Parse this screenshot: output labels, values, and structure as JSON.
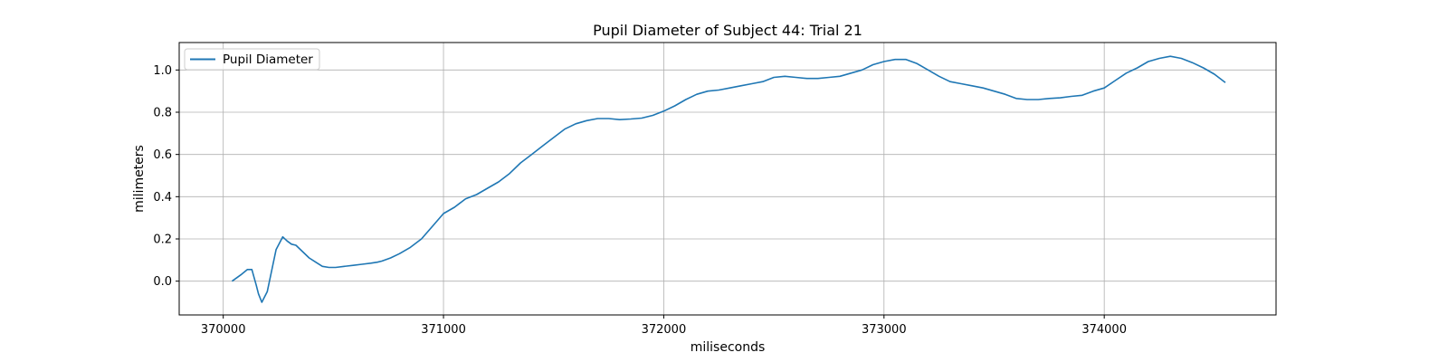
{
  "chart_data": {
    "type": "line",
    "title": "Pupil Diameter of Subject 44: Trial 21",
    "xlabel": "miliseconds",
    "ylabel": "milimeters",
    "xlim": [
      369800,
      374780
    ],
    "ylim": [
      -0.16,
      1.13
    ],
    "xticks": [
      370000,
      371000,
      372000,
      373000,
      374000
    ],
    "yticks": [
      0.0,
      0.2,
      0.4,
      0.6,
      0.8,
      1.0
    ],
    "xtick_labels": [
      "370000",
      "371000",
      "372000",
      "373000",
      "374000"
    ],
    "ytick_labels": [
      "0.0",
      "0.2",
      "0.4",
      "0.6",
      "0.8",
      "1.0"
    ],
    "grid": true,
    "legend_position": "top-left",
    "series": [
      {
        "name": "Pupil Diameter",
        "color": "#1f77b4",
        "x": [
          370040,
          370080,
          370110,
          370130,
          370150,
          370160,
          370175,
          370200,
          370220,
          370240,
          370270,
          370290,
          370310,
          370330,
          370360,
          370390,
          370420,
          370450,
          370480,
          370510,
          370550,
          370590,
          370630,
          370670,
          370700,
          370720,
          370760,
          370800,
          370850,
          370900,
          370950,
          371000,
          371050,
          371100,
          371150,
          371200,
          371250,
          371300,
          371350,
          371400,
          371450,
          371500,
          371550,
          371600,
          371650,
          371700,
          371750,
          371800,
          371850,
          371900,
          371950,
          372000,
          372050,
          372100,
          372150,
          372200,
          372250,
          372300,
          372350,
          372400,
          372450,
          372500,
          372550,
          372600,
          372650,
          372700,
          372750,
          372800,
          372850,
          372900,
          372950,
          373000,
          373050,
          373100,
          373150,
          373200,
          373250,
          373300,
          373350,
          373400,
          373450,
          373500,
          373550,
          373600,
          373650,
          373700,
          373750,
          373800,
          373850,
          373900,
          373950,
          374000,
          374050,
          374100,
          374150,
          374200,
          374250,
          374300,
          374350,
          374400,
          374450,
          374500,
          374550
        ],
        "y": [
          0.0,
          0.03,
          0.055,
          0.055,
          -0.02,
          -0.06,
          -0.1,
          -0.05,
          0.05,
          0.15,
          0.21,
          0.19,
          0.175,
          0.17,
          0.14,
          0.11,
          0.09,
          0.07,
          0.065,
          0.065,
          0.07,
          0.075,
          0.08,
          0.085,
          0.09,
          0.095,
          0.11,
          0.13,
          0.16,
          0.2,
          0.26,
          0.32,
          0.35,
          0.39,
          0.41,
          0.44,
          0.47,
          0.51,
          0.56,
          0.6,
          0.64,
          0.68,
          0.72,
          0.745,
          0.76,
          0.77,
          0.77,
          0.765,
          0.768,
          0.772,
          0.785,
          0.805,
          0.83,
          0.86,
          0.885,
          0.9,
          0.905,
          0.915,
          0.925,
          0.935,
          0.945,
          0.965,
          0.97,
          0.965,
          0.96,
          0.96,
          0.965,
          0.97,
          0.985,
          1.0,
          1.025,
          1.04,
          1.05,
          1.05,
          1.03,
          1.0,
          0.97,
          0.945,
          0.935,
          0.925,
          0.915,
          0.9,
          0.885,
          0.865,
          0.86,
          0.86,
          0.865,
          0.868,
          0.875,
          0.88,
          0.9,
          0.915,
          0.95,
          0.985,
          1.01,
          1.04,
          1.055,
          1.065,
          1.055,
          1.035,
          1.01,
          0.98,
          0.94
        ]
      }
    ]
  }
}
